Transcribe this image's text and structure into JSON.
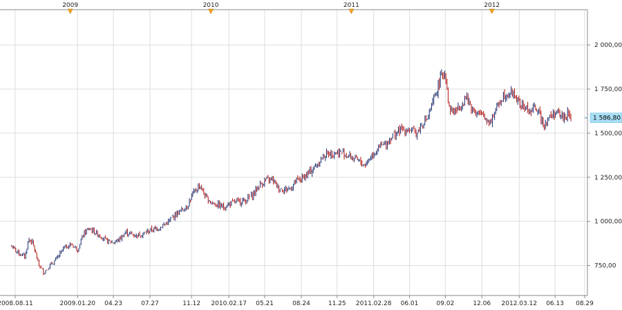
{
  "chart_data": {
    "type": "line",
    "style": "candlestick / OHLC bars",
    "title": "",
    "xlabel": "",
    "ylabel": "",
    "ylim": [
      580,
      2200
    ],
    "grid": true,
    "y_ticks": [
      {
        "value": 2000,
        "label": "2 000,00"
      },
      {
        "value": 1750,
        "label": "1 750,00"
      },
      {
        "value": 1500,
        "label": "1 500,00"
      },
      {
        "value": 1250,
        "label": "1 250,00"
      },
      {
        "value": 1000,
        "label": "1 000,00"
      },
      {
        "value": 750,
        "label": "750,00"
      }
    ],
    "x_ticks": [
      {
        "date": "2008-08-11",
        "label": "2008.08.11"
      },
      {
        "date": "2009-01-20",
        "label": "2009.01.20"
      },
      {
        "date": "2009-04-23",
        "label": "04.23"
      },
      {
        "date": "2009-07-27",
        "label": "07.27"
      },
      {
        "date": "2009-11-12",
        "label": "11.12"
      },
      {
        "date": "2010-02-17",
        "label": "2010.02.17"
      },
      {
        "date": "2010-05-21",
        "label": "05.21"
      },
      {
        "date": "2010-08-24",
        "label": "08.24"
      },
      {
        "date": "2010-11-25",
        "label": "11.25"
      },
      {
        "date": "2011-02-28",
        "label": "2011.02.28"
      },
      {
        "date": "2011-06-01",
        "label": "06.01"
      },
      {
        "date": "2011-09-02",
        "label": "09.02"
      },
      {
        "date": "2011-12-06",
        "label": "12.06"
      },
      {
        "date": "2012-03-12",
        "label": "2012.03.12"
      },
      {
        "date": "2012-06-13",
        "label": "06.13"
      },
      {
        "date": "2012-08-29",
        "label": "08.29"
      }
    ],
    "year_markers": [
      {
        "date": "2009-01-01",
        "label": "2009"
      },
      {
        "date": "2010-01-01",
        "label": "2010"
      },
      {
        "date": "2011-01-01",
        "label": "2011"
      },
      {
        "date": "2012-01-01",
        "label": "2012"
      }
    ],
    "last_value": {
      "value": 1586.8,
      "label": "1 586,80"
    },
    "series": [
      {
        "x": [
          "2008-08-01",
          "2008-08-20",
          "2008-09-05",
          "2008-09-15",
          "2008-09-25",
          "2008-10-10",
          "2008-10-24",
          "2008-11-05",
          "2008-11-15",
          "2008-12-01",
          "2008-12-15",
          "2009-01-05",
          "2009-01-20",
          "2009-02-05",
          "2009-02-20",
          "2009-03-05",
          "2009-03-20",
          "2009-04-05",
          "2009-04-23",
          "2009-05-10",
          "2009-05-25",
          "2009-06-05",
          "2009-06-20",
          "2009-07-10",
          "2009-07-27",
          "2009-08-15",
          "2009-09-01",
          "2009-09-15",
          "2009-10-01",
          "2009-10-15",
          "2009-11-01",
          "2009-11-12",
          "2009-12-03",
          "2009-12-20",
          "2010-01-10",
          "2010-02-05",
          "2010-02-17",
          "2010-03-10",
          "2010-04-01",
          "2010-04-20",
          "2010-05-05",
          "2010-05-21",
          "2010-06-10",
          "2010-06-25",
          "2010-07-10",
          "2010-07-28",
          "2010-08-10",
          "2010-08-24",
          "2010-09-10",
          "2010-09-25",
          "2010-10-10",
          "2010-10-25",
          "2010-11-10",
          "2010-11-25",
          "2010-12-10",
          "2011-01-05",
          "2011-01-20",
          "2011-02-05",
          "2011-02-28",
          "2011-03-15",
          "2011-04-01",
          "2011-04-15",
          "2011-05-01",
          "2011-05-15",
          "2011-06-01",
          "2011-06-20",
          "2011-07-05",
          "2011-07-20",
          "2011-08-05",
          "2011-08-22",
          "2011-09-02",
          "2011-09-12",
          "2011-09-26",
          "2011-10-10",
          "2011-10-25",
          "2011-11-08",
          "2011-11-20",
          "2011-12-06",
          "2011-12-16",
          "2011-12-29",
          "2012-01-15",
          "2012-02-01",
          "2012-02-20",
          "2012-03-01",
          "2012-03-12",
          "2012-03-25",
          "2012-04-10",
          "2012-04-25",
          "2012-05-05",
          "2012-05-16",
          "2012-05-25",
          "2012-06-05",
          "2012-06-13",
          "2012-06-25",
          "2012-07-05",
          "2012-07-15",
          "2012-07-25"
        ],
        "y": [
          860,
          820,
          800,
          900,
          880,
          760,
          710,
          740,
          760,
          800,
          850,
          870,
          840,
          930,
          960,
          940,
          920,
          890,
          880,
          900,
          940,
          930,
          920,
          930,
          950,
          960,
          980,
          1000,
          1040,
          1060,
          1090,
          1140,
          1210,
          1130,
          1100,
          1080,
          1100,
          1110,
          1120,
          1150,
          1200,
          1230,
          1240,
          1190,
          1180,
          1190,
          1230,
          1240,
          1270,
          1300,
          1340,
          1380,
          1390,
          1390,
          1390,
          1360,
          1340,
          1320,
          1390,
          1420,
          1440,
          1480,
          1510,
          1520,
          1520,
          1500,
          1560,
          1590,
          1700,
          1820,
          1850,
          1640,
          1620,
          1650,
          1710,
          1650,
          1620,
          1600,
          1580,
          1570,
          1650,
          1720,
          1730,
          1720,
          1660,
          1650,
          1620,
          1650,
          1600,
          1550,
          1580,
          1600,
          1620,
          1600,
          1590,
          1610,
          1587
        ]
      }
    ]
  }
}
